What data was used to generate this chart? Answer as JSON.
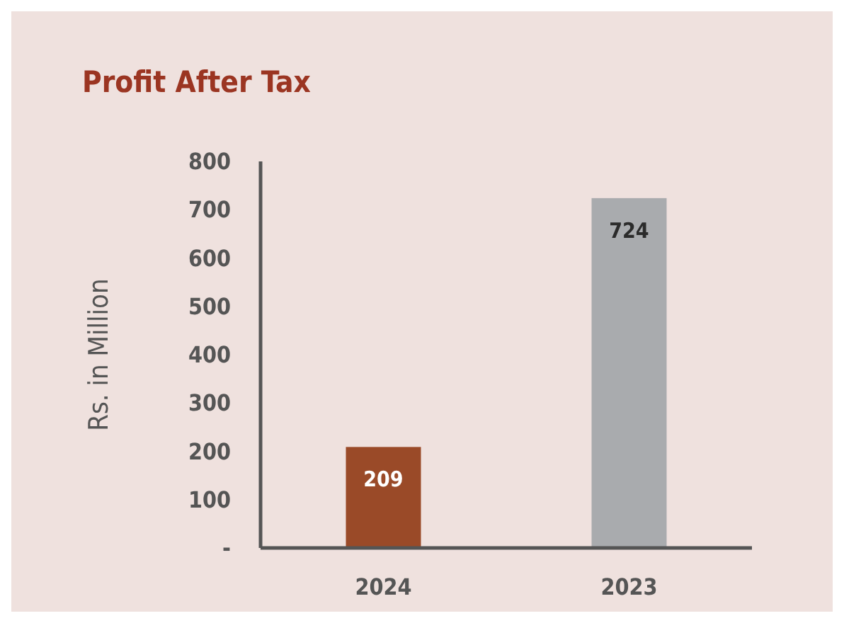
{
  "chart_data": {
    "type": "bar",
    "title": "Profit After Tax",
    "ylabel": "Rs. in Million",
    "categories": [
      "2024",
      "2023"
    ],
    "values": [
      209,
      724
    ],
    "colors": [
      "#9a4a28",
      "#a9abae"
    ],
    "ylim": [
      0,
      800
    ],
    "yticks": [
      {
        "value": 0,
        "label": "-"
      },
      100,
      200,
      300,
      400,
      500,
      600,
      700,
      800
    ],
    "data_labels": true
  }
}
